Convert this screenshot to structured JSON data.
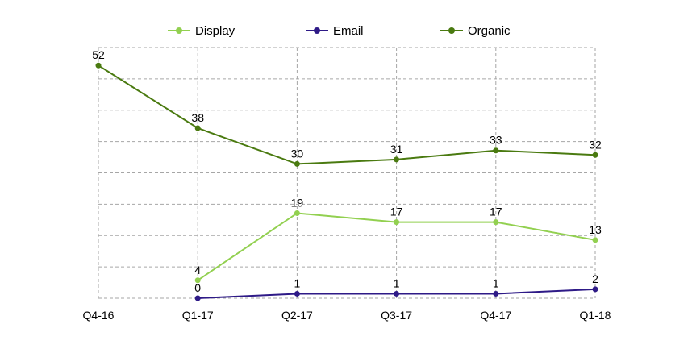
{
  "chart_data": {
    "type": "line",
    "categories": [
      "Q4-16",
      "Q1-17",
      "Q2-17",
      "Q3-17",
      "Q4-17",
      "Q1-18"
    ],
    "series": [
      {
        "name": "Display",
        "color": "#92d050",
        "values": [
          null,
          4,
          19,
          17,
          17,
          13
        ]
      },
      {
        "name": "Email",
        "color": "#2e1a87",
        "values": [
          null,
          0,
          1,
          1,
          1,
          2
        ]
      },
      {
        "name": "Organic",
        "color": "#4a7a10",
        "values": [
          52,
          38,
          30,
          31,
          33,
          32
        ]
      }
    ],
    "data_labels": {
      "Display": [
        "",
        "4",
        "19",
        "17",
        "17",
        "13"
      ],
      "Email": [
        "",
        "0",
        "1",
        "1",
        "1",
        "2"
      ],
      "Organic": [
        "52",
        "38",
        "30",
        "31",
        "33",
        "32"
      ]
    },
    "ylim": [
      0,
      56
    ],
    "grid": true,
    "legend_position": "top",
    "title": "",
    "xlabel": "",
    "ylabel": ""
  }
}
